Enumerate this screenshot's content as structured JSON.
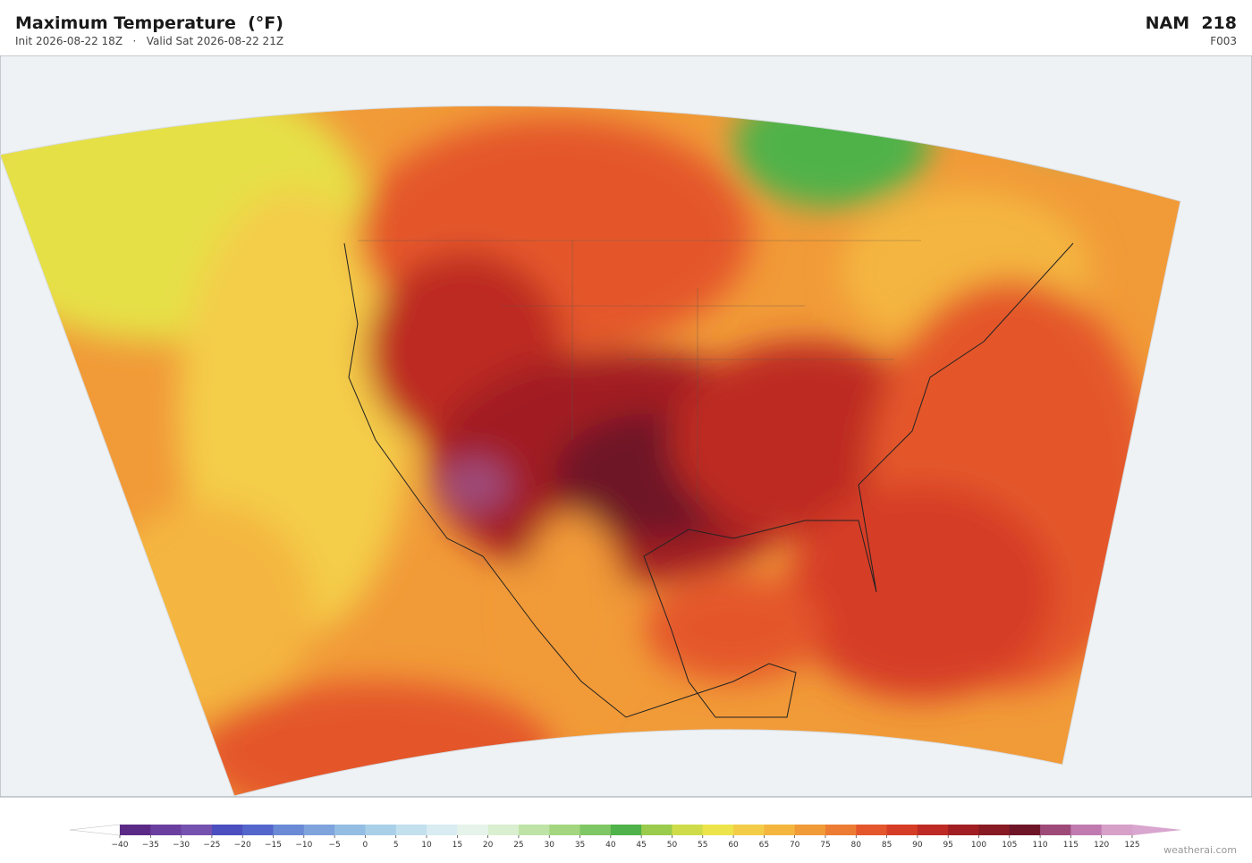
{
  "header": {
    "title": "Maximum Temperature  (°F)",
    "init": "Init 2026-08-22 18Z",
    "separator": "·",
    "valid": "Valid Sat 2026-08-22 21Z",
    "model": "NAM  218",
    "forecast_hour": "F003"
  },
  "colorbar": {
    "ticks": [
      {
        "value": -40,
        "label": "−40"
      },
      {
        "value": -35,
        "label": "−35"
      },
      {
        "value": -30,
        "label": "−30"
      },
      {
        "value": -25,
        "label": "−25"
      },
      {
        "value": -20,
        "label": "−20"
      },
      {
        "value": -15,
        "label": "−15"
      },
      {
        "value": -10,
        "label": "−10"
      },
      {
        "value": -5,
        "label": "−5"
      },
      0,
      5,
      10,
      15,
      20,
      25,
      30,
      35,
      40,
      45,
      50,
      55,
      60,
      65,
      70,
      75,
      80,
      85,
      90,
      95,
      100,
      105,
      110,
      115,
      120,
      125
    ],
    "colors": [
      "#5b2a86",
      "#6b3fa0",
      "#7552b0",
      "#4b4fbf",
      "#5466cc",
      "#6a8ad6",
      "#7fa3dc",
      "#93bde2",
      "#a9d0e8",
      "#c2e0ee",
      "#d8ecf2",
      "#e6f3ea",
      "#d9efd0",
      "#bfe3a6",
      "#a3d67f",
      "#7fc664",
      "#4fb24a",
      "#9acb4c",
      "#cfdc4a",
      "#ece44a",
      "#f4cd48",
      "#f4b63f",
      "#f19a38",
      "#ec7c33",
      "#e4562c",
      "#d63d26",
      "#bd2b24",
      "#a11f22",
      "#871a22",
      "#6e1628",
      "#9e4b7a",
      "#c07ab0",
      "#d6a0c8"
    ],
    "under_color": "#ffffff",
    "over_color": "#d9a6cf"
  },
  "watermark": "weatherai.com"
}
